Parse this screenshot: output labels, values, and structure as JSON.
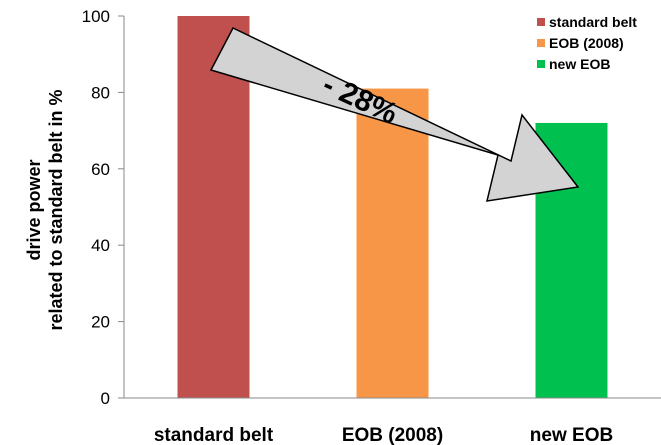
{
  "chart_data": {
    "type": "bar",
    "categories": [
      "standard belt",
      "EOB (2008)",
      "new EOB"
    ],
    "values": [
      100,
      81,
      72
    ],
    "colors": [
      "#c0504d",
      "#f79646",
      "#00c050"
    ],
    "ylabel_line1": "drive power",
    "ylabel_line2": "related to standard belt in %",
    "ylim": [
      0,
      100
    ],
    "yticks": [
      "0",
      "20",
      "40",
      "60",
      "80",
      "100"
    ],
    "legend": {
      "position": "top-right",
      "entries": [
        {
          "label": "standard belt",
          "color": "#c0504d"
        },
        {
          "label": "EOB (2008)",
          "color": "#f79646"
        },
        {
          "label": "new EOB",
          "color": "#00c050"
        }
      ]
    },
    "annotation": {
      "text": "- 28%",
      "from": "standard belt",
      "to": "new EOB"
    },
    "grid": false
  }
}
